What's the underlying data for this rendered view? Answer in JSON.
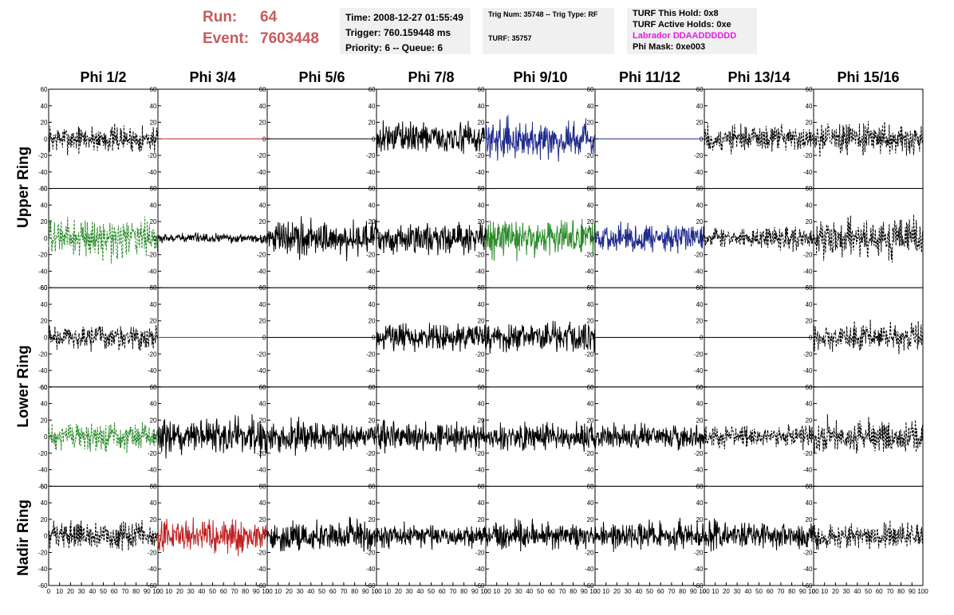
{
  "header": {
    "run_label": "Run:",
    "run_value": "64",
    "event_label": "Event:",
    "event_value": "7603448",
    "time": "Time: 2008-12-27 01:55:49",
    "trigger": "Trigger: 760.159448 ms",
    "priority_queue": "Priority: 6 -- Queue: 6",
    "trig_num_type": "Trig Num: 35748 -- Trig Type: RF",
    "turf": "TURF: 35757",
    "turf_this_hold": "TURF This Hold: 0x8",
    "turf_active_holds": "TURF Active Holds: 0xe",
    "labrador": "Labrador DDAADDDDDD",
    "phi_mask": "Phi Mask: 0xe003"
  },
  "columns": [
    "Phi 1/2",
    "Phi 3/4",
    "Phi 5/6",
    "Phi 7/8",
    "Phi 9/10",
    "Phi 11/12",
    "Phi 13/14",
    "Phi 15/16"
  ],
  "rows": [
    "Upper Ring",
    "Lower Ring",
    "Nadir Ring"
  ],
  "y_tick_labels": [
    "60",
    "40",
    "20",
    "0",
    "-20",
    "-40",
    "-60"
  ],
  "x_tick_labels": [
    "0",
    "10",
    "20",
    "30",
    "40",
    "50",
    "60",
    "70",
    "80",
    "90",
    "100"
  ],
  "colors": {
    "run_text": "#c9595b",
    "info_bg": "#f0f0f0",
    "labrador_text": "#e51be5"
  },
  "chart_data": {
    "type": "line",
    "xlim": [
      0,
      100
    ],
    "ylim": [
      -60,
      60
    ],
    "xlabel": "",
    "ylabel": "",
    "grid": false,
    "panel_rows": 5,
    "panel_cols": 8,
    "panels": [
      [
        {
          "color": "#000000",
          "style": "dashed",
          "amp": 18
        },
        {
          "color": "#c02020",
          "style": "solid",
          "amp": 0
        },
        {
          "color": "#000000",
          "style": "solid",
          "amp": 0
        },
        {
          "color": "#000000",
          "style": "solid",
          "amp": 20
        },
        {
          "color": "#1f2a8c",
          "style": "solid",
          "amp": 24
        },
        {
          "color": "#1f2a8c",
          "style": "solid",
          "amp": 0
        },
        {
          "color": "#000000",
          "style": "dashed",
          "amp": 18
        },
        {
          "color": "#000000",
          "style": "dashed",
          "amp": 20
        }
      ],
      [
        {
          "color": "#2a8a2a",
          "style": "dashed",
          "amp": 25
        },
        {
          "color": "#000000",
          "style": "solid",
          "amp": 6
        },
        {
          "color": "#000000",
          "style": "solid",
          "amp": 24
        },
        {
          "color": "#000000",
          "style": "solid",
          "amp": 20
        },
        {
          "color": "#2a8a2a",
          "style": "solid",
          "amp": 24
        },
        {
          "color": "#1f2a8c",
          "style": "solid",
          "amp": 18
        },
        {
          "color": "#000000",
          "style": "dashed",
          "amp": 14
        },
        {
          "color": "#000000",
          "style": "dashed",
          "amp": 25
        }
      ],
      [
        {
          "color": "#000000",
          "style": "dashed",
          "amp": 16
        },
        {
          "color": "#c02020",
          "style": "solid",
          "amp": 0
        },
        {
          "color": "#000000",
          "style": "solid",
          "amp": 0
        },
        {
          "color": "#000000",
          "style": "solid",
          "amp": 18
        },
        {
          "color": "#000000",
          "style": "solid",
          "amp": 20
        },
        {
          "color": "#000000",
          "style": "solid",
          "amp": 0
        },
        {
          "color": "#000000",
          "style": "solid",
          "amp": 0
        },
        {
          "color": "#000000",
          "style": "dashed",
          "amp": 18
        }
      ],
      [
        {
          "color": "#2a8a2a",
          "style": "dashed",
          "amp": 18
        },
        {
          "color": "#000000",
          "style": "solid",
          "amp": 24
        },
        {
          "color": "#000000",
          "style": "solid",
          "amp": 20
        },
        {
          "color": "#000000",
          "style": "solid",
          "amp": 20
        },
        {
          "color": "#000000",
          "style": "solid",
          "amp": 18
        },
        {
          "color": "#000000",
          "style": "solid",
          "amp": 16
        },
        {
          "color": "#000000",
          "style": "dashed",
          "amp": 14
        },
        {
          "color": "#000000",
          "style": "dashed",
          "amp": 22
        }
      ],
      [
        {
          "color": "#000000",
          "style": "dashed",
          "amp": 18
        },
        {
          "color": "#c02020",
          "style": "solid",
          "amp": 22
        },
        {
          "color": "#000000",
          "style": "solid",
          "amp": 20
        },
        {
          "color": "#000000",
          "style": "solid",
          "amp": 16
        },
        {
          "color": "#000000",
          "style": "solid",
          "amp": 18
        },
        {
          "color": "#000000",
          "style": "solid",
          "amp": 18
        },
        {
          "color": "#000000",
          "style": "solid",
          "amp": 18
        },
        {
          "color": "#000000",
          "style": "dashed",
          "amp": 16
        }
      ]
    ]
  }
}
